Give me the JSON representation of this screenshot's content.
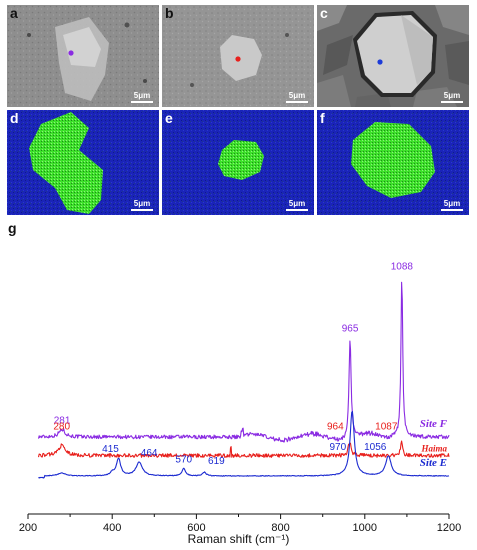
{
  "panels": {
    "a": {
      "label": "a",
      "scale": "5μm",
      "dot_color": "#8a2be2"
    },
    "b": {
      "label": "b",
      "scale": "5μm",
      "dot_color": "#e8201c"
    },
    "c": {
      "label": "c",
      "scale": "5μm",
      "dot_color": "#1c3bd8"
    },
    "d": {
      "label": "d",
      "scale": "5μm"
    },
    "e": {
      "label": "e",
      "scale": "5μm"
    },
    "f": {
      "label": "f",
      "scale": "5μm"
    }
  },
  "colors": {
    "map_blue": "#1a24b8",
    "map_green": "#3de02a"
  },
  "chart_label": "g",
  "chart_data": {
    "type": "line",
    "xlabel": "Raman shift (cm⁻¹)",
    "xlim": [
      200,
      1200
    ],
    "xticks": [
      200,
      400,
      600,
      800,
      1000,
      1200
    ],
    "grid": false,
    "series": [
      {
        "name": "Site F",
        "color": "#8a2be2",
        "baseline": 0.63,
        "peaks": [
          {
            "x": 281,
            "h": 0.12,
            "w": 9
          },
          {
            "x": 965,
            "h": 1.6,
            "w": 3
          },
          {
            "x": 1088,
            "h": 2.6,
            "w": 2.5
          }
        ],
        "peak_labels": [
          {
            "x": 281,
            "text": "281"
          },
          {
            "x": 965,
            "text": "965"
          },
          {
            "x": 1088,
            "text": "1088"
          }
        ]
      },
      {
        "name": "Haima",
        "color": "#e8201c",
        "baseline": 0.33,
        "peaks": [
          {
            "x": 280,
            "h": 0.16,
            "w": 10
          },
          {
            "x": 964,
            "h": 0.22,
            "w": 4
          },
          {
            "x": 1087,
            "h": 0.22,
            "w": 3
          }
        ],
        "peak_labels": [
          {
            "x": 280,
            "text": "280"
          },
          {
            "x": 964,
            "text": "964"
          },
          {
            "x": 1087,
            "text": "1087"
          }
        ]
      },
      {
        "name": "Site E",
        "color": "#1c2bd0",
        "baseline": 0.0,
        "peaks": [
          {
            "x": 280,
            "h": 0.05,
            "w": 10
          },
          {
            "x": 400,
            "h": 0.05,
            "w": 5
          },
          {
            "x": 415,
            "h": 0.28,
            "w": 6
          },
          {
            "x": 464,
            "h": 0.22,
            "w": 9
          },
          {
            "x": 570,
            "h": 0.12,
            "w": 5
          },
          {
            "x": 619,
            "h": 0.06,
            "w": 5
          },
          {
            "x": 970,
            "h": 1.05,
            "w": 6
          },
          {
            "x": 1056,
            "h": 0.32,
            "w": 8
          }
        ],
        "peak_labels": [
          {
            "x": 415,
            "text": "415"
          },
          {
            "x": 464,
            "text": "464"
          },
          {
            "x": 570,
            "text": "570"
          },
          {
            "x": 619,
            "text": "619"
          },
          {
            "x": 970,
            "text": "970"
          },
          {
            "x": 1056,
            "text": "1056"
          }
        ]
      }
    ]
  }
}
